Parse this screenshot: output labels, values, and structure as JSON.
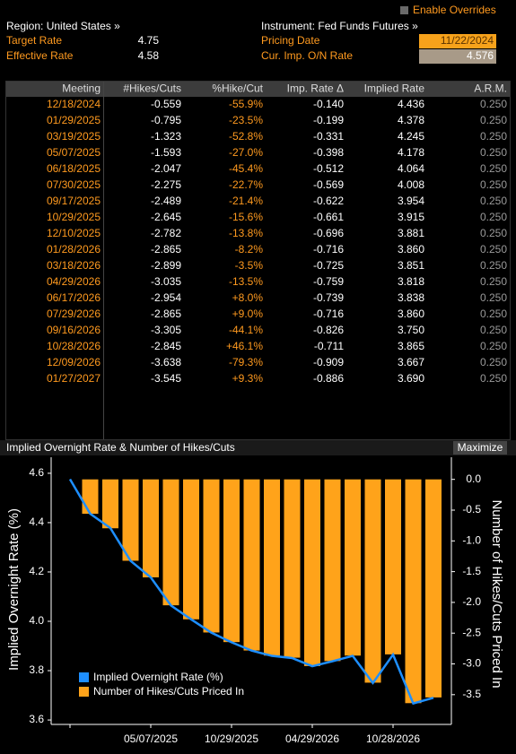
{
  "header": {
    "override_label": "Enable Overrides",
    "region": "Region: United States »",
    "instrument": "Instrument: Fed Funds Futures »",
    "fields": [
      {
        "label": "Target Rate",
        "value": "4.75"
      },
      {
        "label": "Effective Rate",
        "value": "4.58"
      }
    ],
    "pricing_date_label": "Pricing Date",
    "pricing_date": "11/22/2024",
    "cur_rate_label": "Cur. Imp. O/N Rate",
    "cur_rate": "4.576"
  },
  "table": {
    "columns": [
      "Meeting",
      "#Hikes/Cuts",
      "%Hike/Cut",
      "Imp. Rate Δ",
      "Implied Rate",
      "A.R.M."
    ],
    "rows": [
      [
        "12/18/2024",
        "-0.559",
        "-55.9%",
        "-0.140",
        "4.436",
        "0.250"
      ],
      [
        "01/29/2025",
        "-0.795",
        "-23.5%",
        "-0.199",
        "4.378",
        "0.250"
      ],
      [
        "03/19/2025",
        "-1.323",
        "-52.8%",
        "-0.331",
        "4.245",
        "0.250"
      ],
      [
        "05/07/2025",
        "-1.593",
        "-27.0%",
        "-0.398",
        "4.178",
        "0.250"
      ],
      [
        "06/18/2025",
        "-2.047",
        "-45.4%",
        "-0.512",
        "4.064",
        "0.250"
      ],
      [
        "07/30/2025",
        "-2.275",
        "-22.7%",
        "-0.569",
        "4.008",
        "0.250"
      ],
      [
        "09/17/2025",
        "-2.489",
        "-21.4%",
        "-0.622",
        "3.954",
        "0.250"
      ],
      [
        "10/29/2025",
        "-2.645",
        "-15.6%",
        "-0.661",
        "3.915",
        "0.250"
      ],
      [
        "12/10/2025",
        "-2.782",
        "-13.8%",
        "-0.696",
        "3.881",
        "0.250"
      ],
      [
        "01/28/2026",
        "-2.865",
        "-8.2%",
        "-0.716",
        "3.860",
        "0.250"
      ],
      [
        "03/18/2026",
        "-2.899",
        "-3.5%",
        "-0.725",
        "3.851",
        "0.250"
      ],
      [
        "04/29/2026",
        "-3.035",
        "-13.5%",
        "-0.759",
        "3.818",
        "0.250"
      ],
      [
        "06/17/2026",
        "-2.954",
        "+8.0%",
        "-0.739",
        "3.838",
        "0.250"
      ],
      [
        "07/29/2026",
        "-2.865",
        "+9.0%",
        "-0.716",
        "3.860",
        "0.250"
      ],
      [
        "09/16/2026",
        "-3.305",
        "-44.1%",
        "-0.826",
        "3.750",
        "0.250"
      ],
      [
        "10/28/2026",
        "-2.845",
        "+46.1%",
        "-0.711",
        "3.865",
        "0.250"
      ],
      [
        "12/09/2026",
        "-3.638",
        "-79.3%",
        "-0.909",
        "3.667",
        "0.250"
      ],
      [
        "01/27/2027",
        "-3.545",
        "+9.3%",
        "-0.886",
        "3.690",
        "0.250"
      ]
    ]
  },
  "chart_data": {
    "type": "bar-line",
    "title": "Implied Overnight Rate & Number of Hikes/Cuts",
    "button": "Maximize",
    "ylabel": "Implied Overnight Rate (%)",
    "y2label": "Number of Hikes/Cuts Priced In",
    "categories": [
      null,
      null,
      null,
      null,
      "05/07/2025",
      null,
      null,
      null,
      "10/29/2025",
      null,
      null,
      null,
      "04/29/2026",
      null,
      null,
      null,
      "10/28/2026",
      null,
      null
    ],
    "series": [
      {
        "name": "Implied Overnight Rate (%)",
        "type": "line",
        "color": "#1e8fff",
        "values": [
          4.576,
          4.436,
          4.378,
          4.245,
          4.178,
          4.064,
          4.008,
          3.954,
          3.915,
          3.881,
          3.86,
          3.851,
          3.818,
          3.838,
          3.86,
          3.75,
          3.865,
          3.667,
          3.69
        ]
      },
      {
        "name": "Number of Hikes/Cuts Priced In",
        "type": "bar",
        "axis": "y2",
        "color": "#ffa31a",
        "values": [
          null,
          -0.559,
          -0.795,
          -1.323,
          -1.593,
          -2.047,
          -2.275,
          -2.489,
          -2.645,
          -2.782,
          -2.865,
          -2.899,
          -3.035,
          -2.954,
          -2.865,
          -3.305,
          -2.845,
          -3.638,
          -3.545
        ]
      }
    ],
    "ylim": [
      3.593,
      4.665
    ],
    "yticks": [
      3.6,
      3.8,
      {
        "value": 4.0,
        "label": "4.0"
      },
      4.2,
      4.4,
      4.6
    ],
    "y2lim": [
      -3.94,
      0.36
    ],
    "y2ticks": [
      {
        "value": 0,
        "label": "0.0"
      },
      -0.5,
      {
        "value": -1,
        "label": "-1.0"
      },
      -1.5,
      {
        "value": -2,
        "label": "-2.0"
      },
      -2.5,
      {
        "value": -3,
        "label": "-3.0"
      },
      -3.5
    ],
    "legend": "lower left"
  }
}
